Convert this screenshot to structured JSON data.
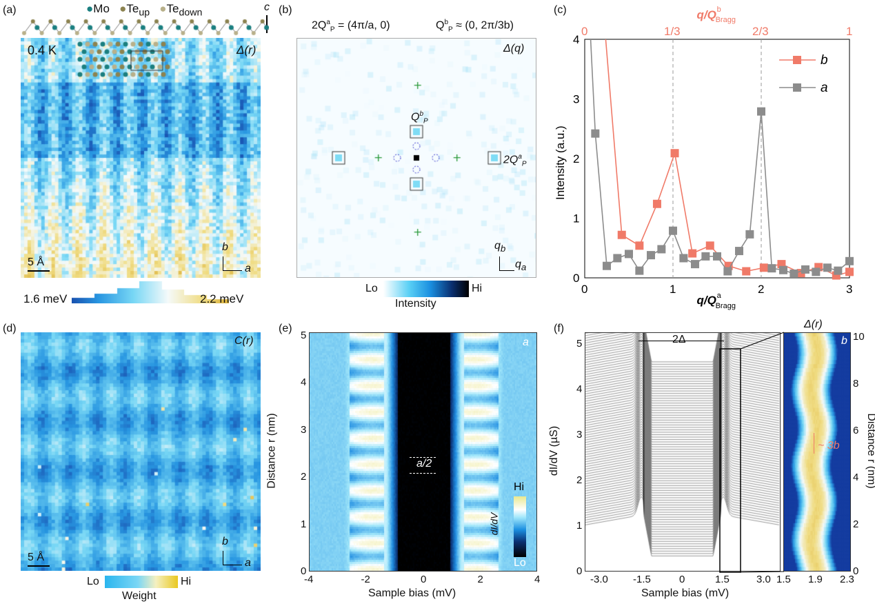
{
  "panels": {
    "a": {
      "label": "(a)",
      "legend": [
        "Mo",
        "Te",
        "Te"
      ],
      "legend_sub": [
        "",
        "up",
        "down"
      ],
      "axis_c": "c",
      "temp": "0.4 K",
      "map_label": "Δ(r)",
      "scale": "5 Å",
      "axis_b": "b",
      "axis_a": "a",
      "cbar_min": "1.6 meV",
      "cbar_max": "2.2 meV"
    },
    "b": {
      "label": "(b)",
      "eq1": "2Q",
      "eq1_sup": "a",
      "eq1_sub": "P",
      "eq1_rest": " = (4π/a, 0)",
      "eq2": "Q",
      "eq2_sup": "b",
      "eq2_sub": "P",
      "eq2_rest": " ≈ (0, 2π/3b)",
      "map_label": "Δ(q)",
      "peak_b": "Q",
      "peak_a": "2Q",
      "qb": "q",
      "qb_sub": "b",
      "qa": "q",
      "qa_sub": "a",
      "cbar_lo": "Lo",
      "cbar_hi": "Hi",
      "cbar_title": "Intensity"
    },
    "c": {
      "label": "(c)"
    },
    "d": {
      "label": "(d)",
      "map_label": "C(r)",
      "scale": "5 Å",
      "axis_b": "b",
      "axis_a": "a",
      "cbar_lo": "Lo",
      "cbar_hi": "Hi",
      "cbar_title": "Weight"
    },
    "e": {
      "label": "(e)",
      "xlabel": "Sample bias (mV)",
      "ylabel": "Distance r (nm)",
      "xticks": [
        "-4",
        "-2",
        "0",
        "2",
        "4"
      ],
      "yticks": [
        "0",
        "1",
        "2",
        "3",
        "4",
        "5"
      ],
      "annot": "a/2",
      "axis_a": "a",
      "cbar_hi": "Hi",
      "cbar_lo": "Lo",
      "cbar_title": "dI/dV"
    },
    "f": {
      "label": "(f)",
      "xlabel": "Sample bias (mV)",
      "ylabel": "dI/dV (µS)",
      "xticks": [
        "-3.0",
        "-1.5",
        "0",
        "1.5",
        "3.0"
      ],
      "yticks": [
        "0",
        "1",
        "2",
        "3",
        "4",
        "5"
      ],
      "side_xticks": [
        "1.5",
        "1.9",
        "2.3"
      ],
      "side_yticks": [
        "0",
        "2",
        "4",
        "6",
        "8",
        "10"
      ],
      "side_ylabel": "Distance r (nm)",
      "side_title": "Δ(r)",
      "gap": "2Δ",
      "period": "~ 3b",
      "axis_b": "b"
    }
  },
  "chart_data": {
    "type": "line",
    "xlabel": "q/Q_Bragg^a",
    "ylabel": "Intensity (a.u.)",
    "top_xlabel": "q/Q_Bragg^b",
    "xlim": [
      0,
      3
    ],
    "ylim": [
      0,
      4
    ],
    "xticks": [
      "0",
      "1",
      "2",
      "3"
    ],
    "yticks": [
      "0",
      "1",
      "2",
      "3",
      "4"
    ],
    "top_xticks": [
      "0",
      "1/3",
      "2/3",
      "1"
    ],
    "vlines": [
      1,
      2
    ],
    "legend_position": "top-right",
    "colors": {
      "b": "#f07a68",
      "a": "#8c8c8c",
      "top_axis": "#f07a68"
    },
    "series": [
      {
        "name": "b",
        "x": [
          0.21,
          0.42,
          0.62,
          0.82,
          1.02,
          1.22,
          1.42,
          1.63,
          1.83,
          2.03,
          2.23,
          2.45,
          2.65,
          2.85,
          3.0
        ],
        "y": [
          4.5,
          0.72,
          0.54,
          1.24,
          2.09,
          0.41,
          0.54,
          0.2,
          0.11,
          0.17,
          0.23,
          0.08,
          0.18,
          0.04,
          0.1
        ]
      },
      {
        "name": "a",
        "x": [
          0.0,
          0.12,
          0.25,
          0.37,
          0.5,
          0.62,
          0.75,
          0.87,
          1.0,
          1.12,
          1.25,
          1.37,
          1.5,
          1.62,
          1.75,
          1.87,
          2.0,
          2.12,
          2.25,
          2.37,
          2.5,
          2.62,
          2.75,
          2.87,
          3.0
        ],
        "y": [
          6.0,
          2.42,
          0.2,
          0.33,
          0.4,
          0.12,
          0.38,
          0.48,
          0.79,
          0.33,
          0.23,
          0.36,
          0.36,
          0.11,
          0.45,
          0.73,
          2.79,
          0.16,
          0.13,
          0.07,
          0.14,
          0.1,
          0.17,
          0.12,
          0.28
        ]
      }
    ]
  }
}
